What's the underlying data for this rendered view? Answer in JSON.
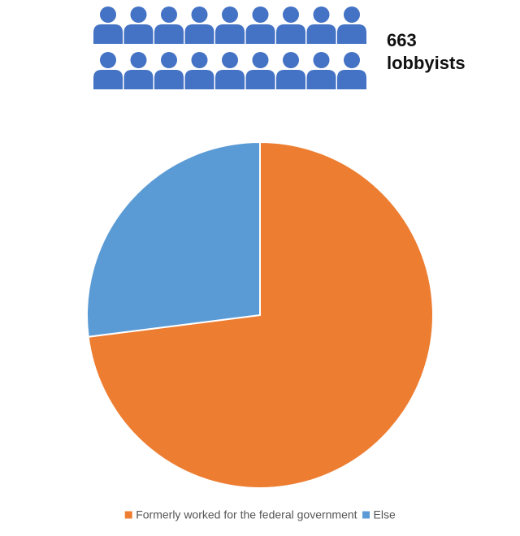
{
  "chart_data": {
    "type": "pie",
    "annotations": [
      "663",
      "lobbyists"
    ],
    "categories": [
      "Formerly worked for the federal government",
      "Else"
    ],
    "values": [
      73,
      27
    ],
    "colors": [
      "#ed7d31",
      "#5b9bd5"
    ],
    "icon_color": "#4472c4",
    "legend": "bottom"
  }
}
